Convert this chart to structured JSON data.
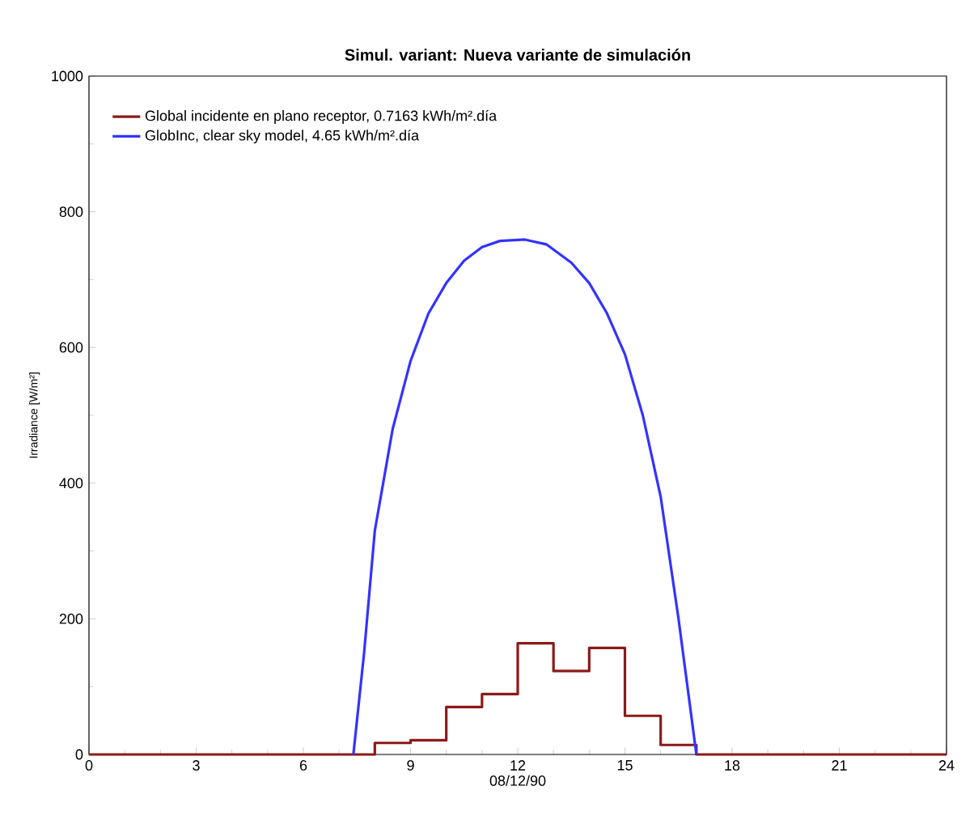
{
  "chart_data": {
    "type": "line",
    "title": "Simul. variant: Nueva variante de simulación",
    "xlabel": "08/12/90",
    "ylabel": "Irradiance  [W/m²]",
    "xlim": [
      0,
      24
    ],
    "xticks": [
      0,
      3,
      6,
      9,
      12,
      15,
      18,
      21,
      24
    ],
    "ylim": [
      0,
      1000
    ],
    "yticks": [
      0,
      200,
      400,
      600,
      800,
      1000
    ],
    "legend": "top left",
    "grid": false,
    "series": [
      {
        "name": "Global incidente en plano receptor,  0.7163 kWh/m².día",
        "type": "step",
        "color": "#8b1a1a",
        "x": [
          0,
          1,
          2,
          3,
          4,
          5,
          6,
          7,
          8,
          9,
          10,
          11,
          12,
          13,
          14,
          15,
          16,
          17,
          18,
          19,
          20,
          21,
          22,
          23,
          24
        ],
        "values": [
          0,
          0,
          0,
          0,
          0,
          0,
          0,
          0,
          17,
          21,
          70,
          89,
          164,
          123,
          157,
          57,
          14,
          0,
          0,
          0,
          0,
          0,
          0,
          0,
          0
        ]
      },
      {
        "name": "GlobInc, clear sky model,  4.65 kWh/m².día",
        "type": "line",
        "color": "#3333ff",
        "x": [
          7.4,
          7.7,
          8.0,
          8.5,
          9.0,
          9.5,
          10,
          10.5,
          11,
          11.5,
          12.2,
          12.8,
          13.5,
          14,
          14.5,
          15,
          15.5,
          16,
          16.5,
          17
        ],
        "values": [
          0,
          150,
          330,
          480,
          580,
          650,
          695,
          728,
          748,
          757,
          759,
          752,
          725,
          695,
          650,
          590,
          500,
          380,
          200,
          0
        ]
      }
    ]
  }
}
